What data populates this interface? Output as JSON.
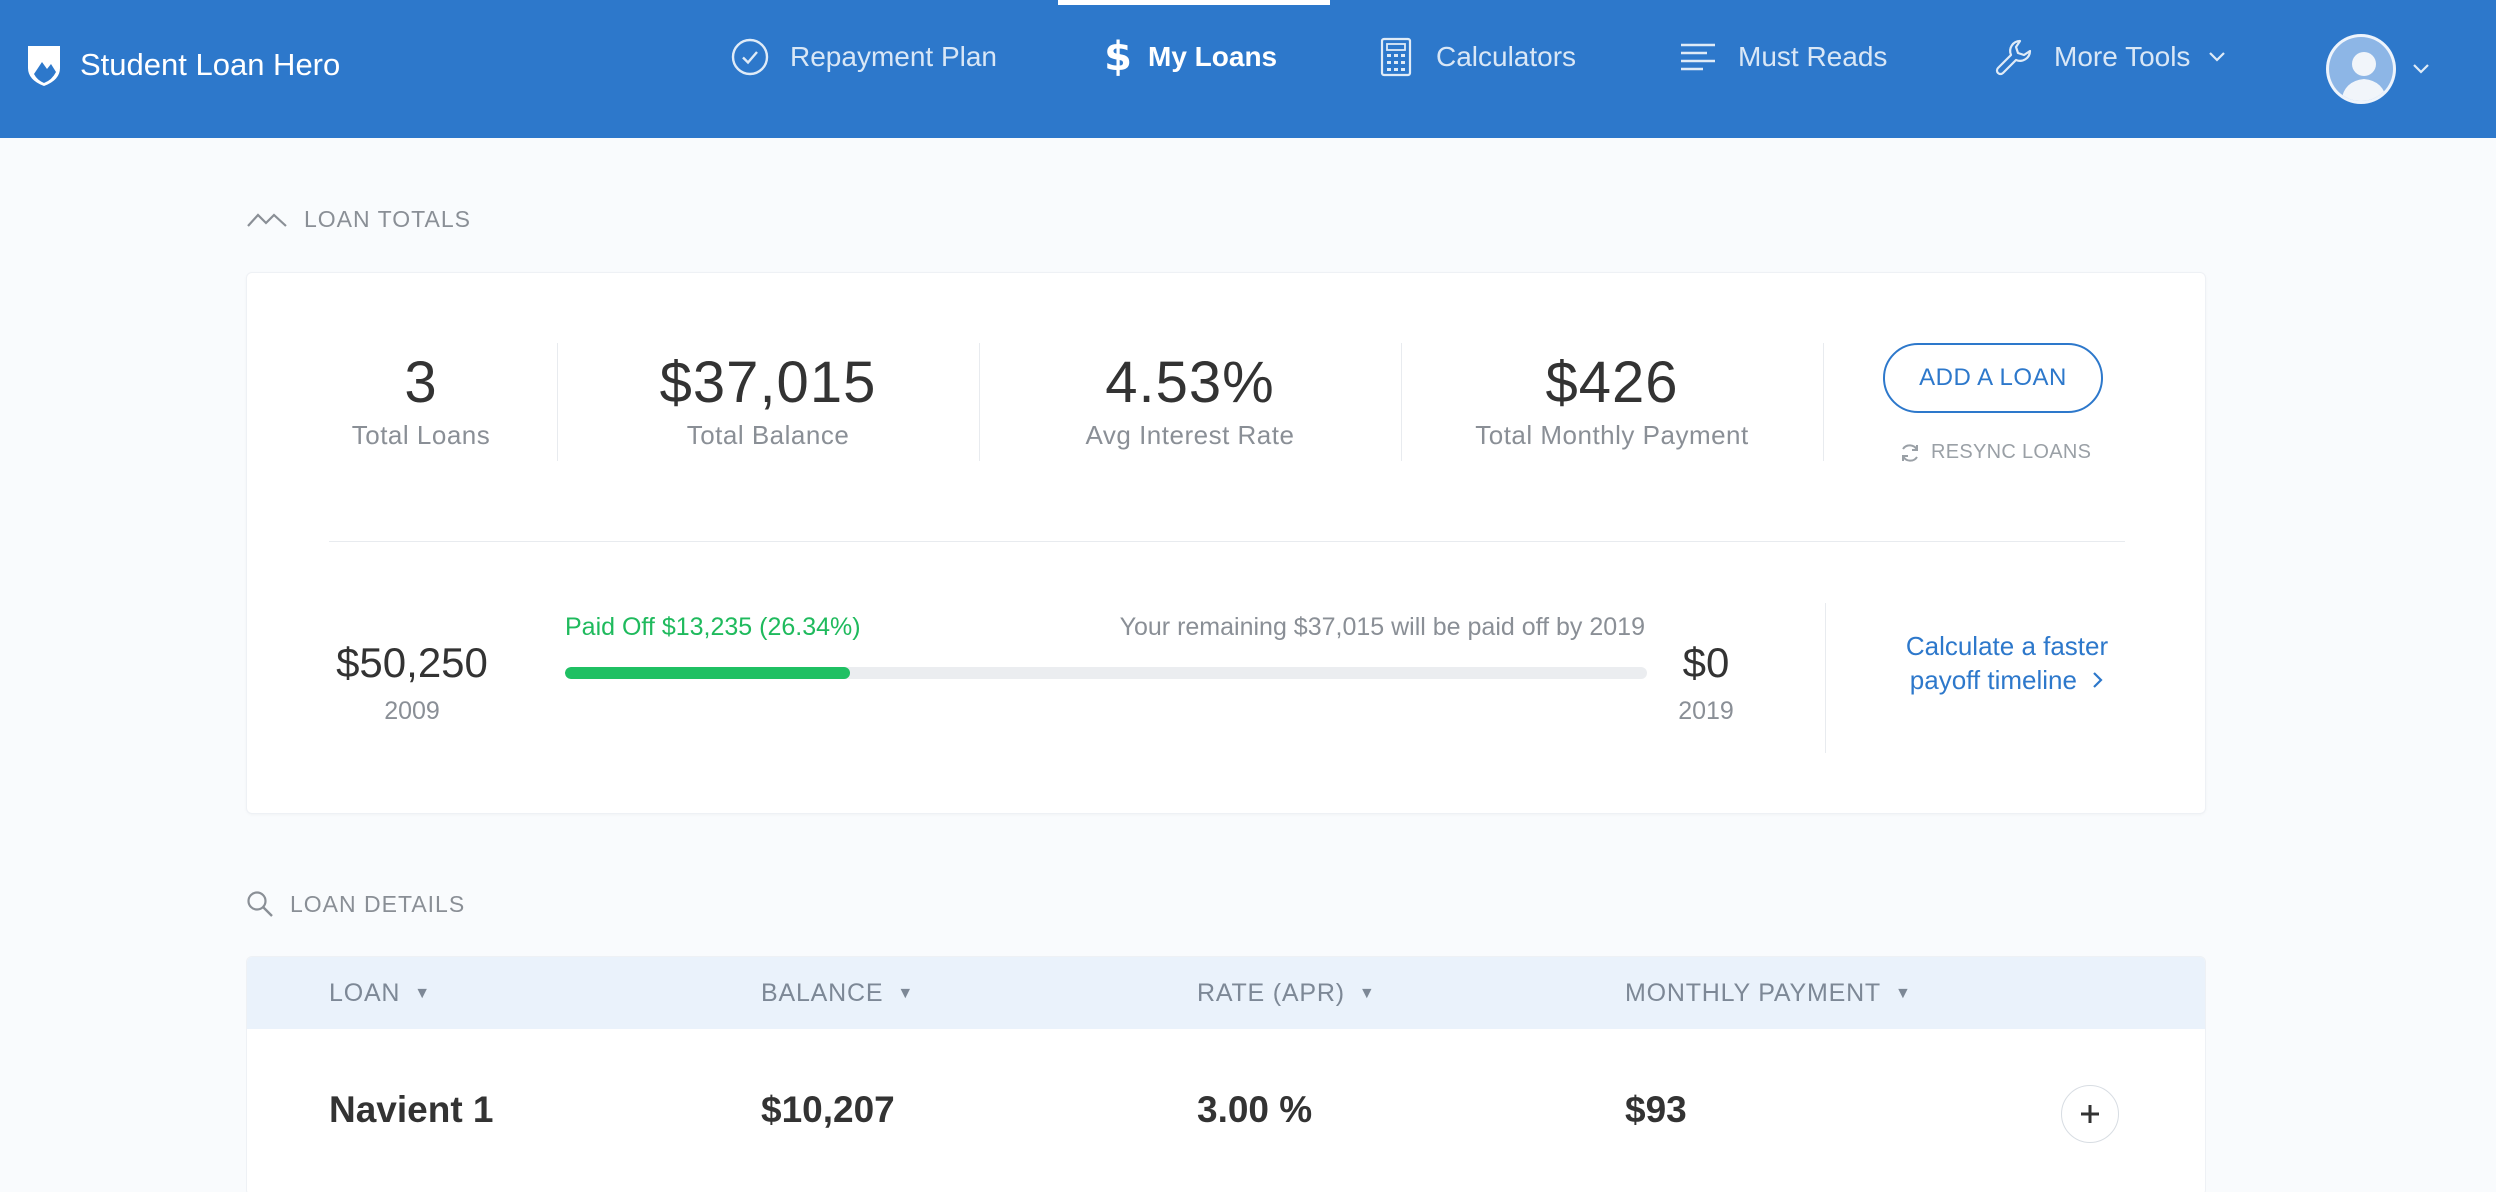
{
  "nav": {
    "brand": "Student Loan Hero",
    "items": [
      {
        "label": "Repayment Plan"
      },
      {
        "label": "My Loans"
      },
      {
        "label": "Calculators"
      },
      {
        "label": "Must Reads"
      },
      {
        "label": "More Tools"
      }
    ],
    "active_index": 1
  },
  "totals_section": {
    "heading": "LOAN TOTALS",
    "stats": [
      {
        "value": "3",
        "label": "Total Loans"
      },
      {
        "value": "$37,015",
        "label": "Total Balance"
      },
      {
        "value": "4.53%",
        "label": "Avg Interest Rate"
      },
      {
        "value": "$426",
        "label": "Total Monthly Payment"
      }
    ],
    "add_loan_label": "ADD A LOAN",
    "resync_label": "RESYNC LOANS",
    "progress": {
      "start_amount": "$50,250",
      "start_year": "2009",
      "end_amount": "$0",
      "end_year": "2019",
      "paid_off_text": "Paid Off $13,235 (26.34%)",
      "remaining_text": "Your remaining $37,015 will be paid off by 2019",
      "fraction": 0.2634
    },
    "faster_link": "Calculate a faster payoff timeline"
  },
  "details_section": {
    "heading": "LOAN DETAILS",
    "columns": [
      "LOAN",
      "BALANCE",
      "RATE (APR)",
      "MONTHLY PAYMENT"
    ],
    "rows": [
      {
        "loan": "Navient 1",
        "balance": "$10,207",
        "rate": "3.00 %",
        "payment": "$93"
      }
    ]
  },
  "colors": {
    "brand_blue": "#2d78cb",
    "progress_green": "#1fc063"
  }
}
